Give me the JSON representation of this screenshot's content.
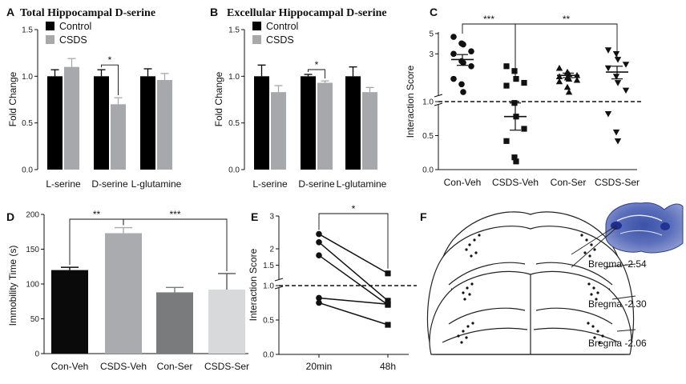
{
  "chart_data": [
    {
      "panel": "A",
      "type": "bar",
      "title": "Total Hippocampal D-serine",
      "ylabel": "Fold Change",
      "ylim": [
        0,
        1.5
      ],
      "yticks": [
        "0.0",
        "0.5",
        "1.0",
        "1.5"
      ],
      "categories": [
        "L-serine",
        "D-serine",
        "L-glutamine"
      ],
      "series": [
        {
          "name": "Control",
          "color": "#000000",
          "values": [
            1.0,
            1.0,
            1.0
          ],
          "errors": [
            0.07,
            0.07,
            0.08
          ]
        },
        {
          "name": "CSDS",
          "color": "#a6a8ab",
          "values": [
            1.1,
            0.7,
            0.96
          ],
          "errors": [
            0.09,
            0.07,
            0.07
          ]
        }
      ],
      "annotations": [
        {
          "label": "*",
          "between": "D-serine Control vs CSDS"
        }
      ]
    },
    {
      "panel": "B",
      "type": "bar",
      "title": "Excellular Hippocampal D-serine",
      "ylabel": "Fold Change",
      "ylim": [
        0,
        1.5
      ],
      "yticks": [
        "0.0",
        "0.5",
        "1.0",
        "1.5"
      ],
      "categories": [
        "L-serine",
        "D-serine",
        "L-glutamine"
      ],
      "series": [
        {
          "name": "Control",
          "color": "#000000",
          "values": [
            1.0,
            1.0,
            1.0
          ],
          "errors": [
            0.12,
            0.02,
            0.1
          ]
        },
        {
          "name": "CSDS",
          "color": "#a6a8ab",
          "values": [
            0.83,
            0.93,
            0.83
          ],
          "errors": [
            0.07,
            0.02,
            0.05
          ]
        }
      ],
      "annotations": [
        {
          "label": "*",
          "between": "D-serine Control vs CSDS"
        }
      ]
    },
    {
      "panel": "C",
      "type": "scatter",
      "ylabel": "Interaction Score",
      "yscale": "log (axis break at 1.0)",
      "yticks": [
        "0.0",
        "0.5",
        "1.0",
        "3",
        "5"
      ],
      "reference_line": 1.0,
      "categories": [
        "Con-Veh",
        "CSDS-Veh",
        "Con-Ser",
        "CSDS-Ser"
      ],
      "series": [
        {
          "name": "Con-Veh",
          "marker": "circle",
          "values": [
            4.6,
            3.9,
            3.8,
            3.2,
            3.0,
            2.5,
            2.4,
            2.2,
            1.6,
            1.4,
            1.15
          ],
          "mean": 2.6,
          "sem": 0.35
        },
        {
          "name": "CSDS-Veh",
          "marker": "square",
          "values": [
            2.2,
            1.95,
            1.6,
            1.45,
            1.35,
            0.98,
            0.78,
            0.6,
            0.42,
            0.18,
            0.12
          ],
          "mean": 0.78,
          "sem": 0.2
        },
        {
          "name": "Con-Ser",
          "marker": "triangle-up",
          "values": [
            2.1,
            1.9,
            1.8,
            1.75,
            1.7,
            1.65,
            1.6,
            1.55,
            1.5,
            1.3,
            1.15
          ],
          "mean": 1.75,
          "sem": 0.1
        },
        {
          "name": "CSDS-Ser",
          "marker": "triangle-down",
          "values": [
            3.3,
            3.0,
            2.6,
            2.3,
            2.1,
            1.7,
            1.45,
            1.2,
            0.82,
            0.55,
            0.42
          ],
          "mean": 1.9,
          "sem": 0.3
        }
      ],
      "annotations": [
        {
          "label": "***",
          "between": "Con-Veh vs CSDS-Veh"
        },
        {
          "label": "**",
          "between": "CSDS-Veh vs CSDS-Ser"
        }
      ]
    },
    {
      "panel": "D",
      "type": "bar",
      "ylabel": "Immobility Time (s)",
      "ylim": [
        0,
        200
      ],
      "yticks": [
        "0",
        "50",
        "100",
        "150",
        "200"
      ],
      "categories": [
        "Con-Veh",
        "CSDS-Veh",
        "Con-Ser",
        "CSDS-Ser"
      ],
      "values": [
        120,
        173,
        88,
        92
      ],
      "errors": [
        4,
        8,
        7,
        23
      ],
      "colors": [
        "#0a0a0a",
        "#a9abae",
        "#7a7b7d",
        "#d7d9da"
      ],
      "annotations": [
        {
          "label": "**",
          "between": "Con-Veh vs CSDS-Veh"
        },
        {
          "label": "***",
          "between": "CSDS-Veh vs CSDS-Ser"
        }
      ]
    },
    {
      "panel": "E",
      "type": "line",
      "ylabel": "Interaction Score",
      "yticks": [
        "0.0",
        "0.5",
        "1.0",
        "1.5",
        "2",
        "3"
      ],
      "reference_line": 1.0,
      "x": [
        "20min",
        "48h"
      ],
      "series": [
        {
          "values": [
            2.45,
            1.25
          ]
        },
        {
          "values": [
            2.2,
            0.78
          ]
        },
        {
          "values": [
            1.8,
            0.72
          ]
        },
        {
          "values": [
            0.82,
            0.73
          ]
        },
        {
          "values": [
            0.75,
            0.43
          ]
        }
      ],
      "annotations": [
        {
          "label": "*",
          "between": "20min vs 48h"
        }
      ]
    }
  ],
  "labels": {
    "panel_a": "A",
    "panel_b": "B",
    "panel_c": "C",
    "panel_d": "D",
    "panel_e": "E",
    "panel_f": "F",
    "legend_control": "Control",
    "legend_csds": "CSDS"
  },
  "panel_f": {
    "bregma": [
      "Bregma -2.54",
      "Bregma -2.30",
      "Bregma -2.06"
    ]
  }
}
